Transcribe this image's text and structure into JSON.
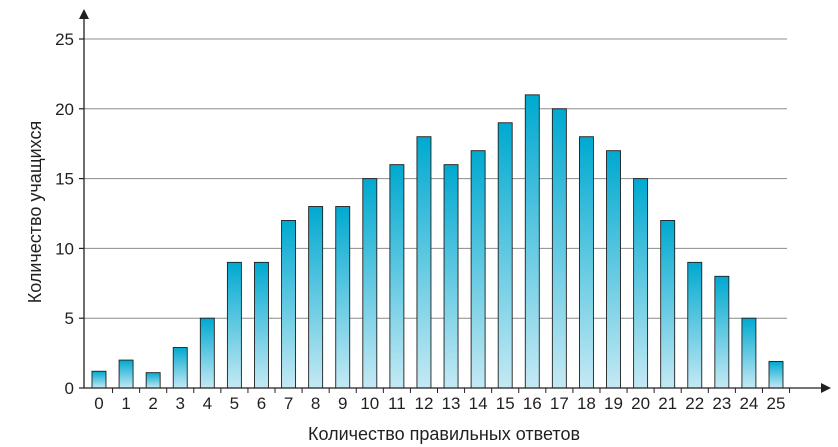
{
  "chart_data": {
    "type": "bar",
    "title": "",
    "xlabel": "Количество правильных ответов",
    "ylabel": "Количество учащихся",
    "categories": [
      "0",
      "1",
      "2",
      "3",
      "4",
      "5",
      "6",
      "7",
      "8",
      "9",
      "10",
      "11",
      "12",
      "13",
      "14",
      "15",
      "16",
      "17",
      "18",
      "19",
      "20",
      "21",
      "22",
      "23",
      "24",
      "25"
    ],
    "values": [
      1.2,
      2,
      1.1,
      2.9,
      5,
      9,
      9,
      12,
      13,
      13,
      15,
      16,
      18,
      16,
      17,
      19,
      21,
      20,
      18,
      17,
      15,
      12,
      9,
      8,
      5,
      1.9
    ],
    "ylim": [
      0,
      25
    ],
    "yticks": [
      "0",
      "5",
      "10",
      "15",
      "20",
      "25"
    ],
    "grid": true,
    "legend": "none",
    "colors": {
      "bar_top": "#00a9d0",
      "bar_bottom": "#c4e9f4",
      "bar_stroke": "#1f1f1f",
      "grid": "#8c8c8c",
      "axis": "#231f20",
      "text": "#231f20"
    }
  }
}
